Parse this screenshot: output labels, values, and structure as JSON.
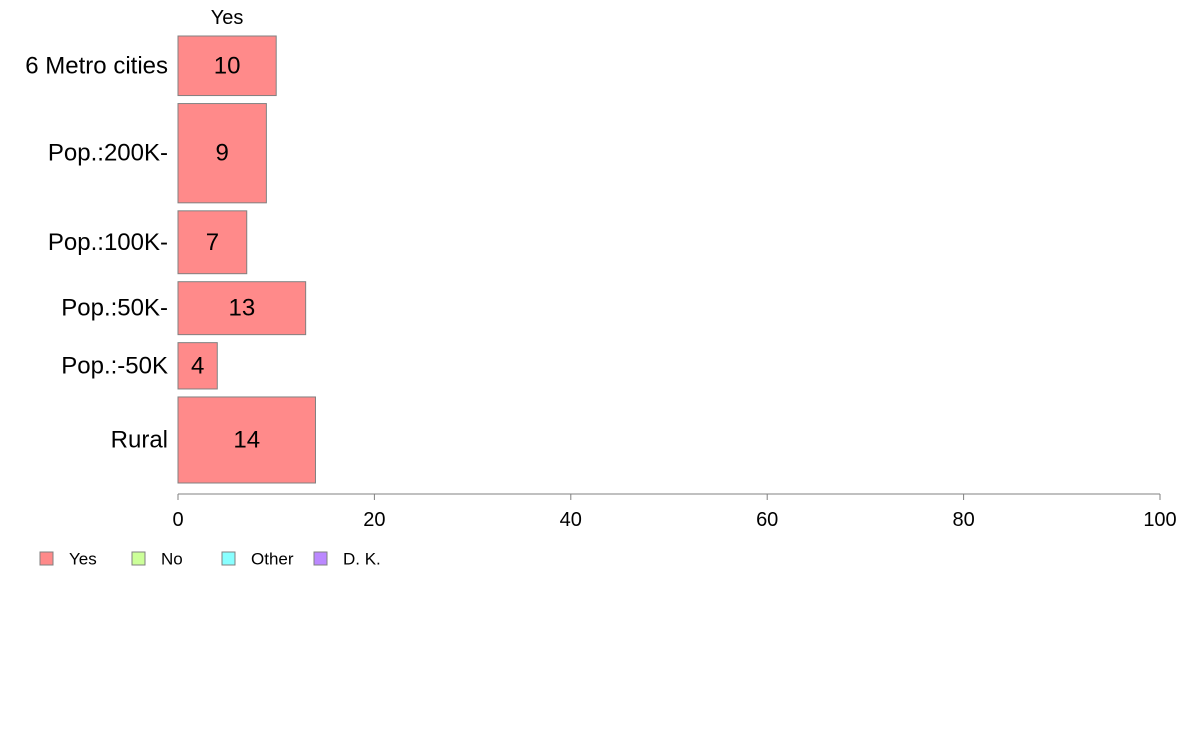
{
  "chart_data": {
    "type": "bar",
    "orientation": "horizontal",
    "stacked": true,
    "top_label": "Yes",
    "categories": [
      "6 Metro cities",
      "Pop.:200K-",
      "Pop.:100K-",
      "Pop.:50K-",
      "Pop.:-50K",
      "Rural"
    ],
    "relative_row_sizes": [
      0.9,
      1.5,
      0.95,
      0.8,
      0.7,
      1.3
    ],
    "series": [
      {
        "name": "Yes",
        "color": "#ff8a8a",
        "values": [
          10,
          9,
          7,
          13,
          4,
          14
        ]
      },
      {
        "name": "No",
        "color": "#ccff99",
        "values": [
          null,
          null,
          null,
          null,
          null,
          null
        ]
      },
      {
        "name": "Other",
        "color": "#88ffff",
        "values": [
          null,
          null,
          null,
          null,
          null,
          null
        ]
      },
      {
        "name": "D. K.",
        "color": "#bb88ff",
        "values": [
          null,
          null,
          null,
          null,
          null,
          null
        ]
      }
    ],
    "xlim": [
      0,
      100
    ],
    "xticks": [
      0,
      20,
      40,
      60,
      80,
      100
    ],
    "xlabel": "",
    "ylabel": "",
    "grid": false,
    "legend_position": "bottom-left"
  }
}
